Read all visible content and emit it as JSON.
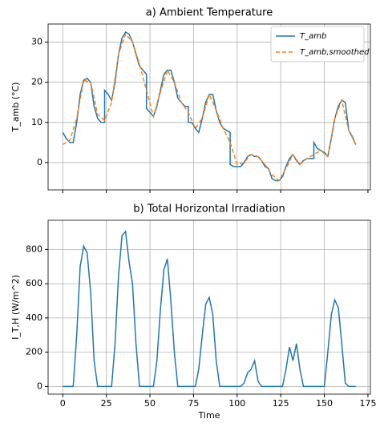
{
  "chart_data": [
    {
      "type": "line",
      "title": "a) Ambient Temperature",
      "ylabel": "T_amb (°C)",
      "xlim": [
        -8.4,
        176.4
      ],
      "ylim": [
        -6.8,
        34.5
      ],
      "xticks": [
        0,
        25,
        50,
        75,
        100,
        125,
        150,
        175
      ],
      "yticks": [
        0,
        10,
        20,
        30
      ],
      "grid": true,
      "legend": "upper right",
      "series": [
        {
          "name": "T_amb",
          "color": "#1f77b4",
          "style": "solid",
          "x": [
            0,
            2,
            4,
            6,
            8,
            10,
            12,
            14,
            16,
            18,
            20,
            22,
            24,
            24,
            26,
            28,
            30,
            32,
            34,
            36,
            38,
            40,
            42,
            44,
            46,
            48,
            48,
            50,
            52,
            54,
            56,
            58,
            60,
            62,
            64,
            66,
            68,
            70,
            72,
            72,
            74,
            76,
            78,
            80,
            82,
            84,
            86,
            88,
            90,
            92,
            94,
            96,
            96,
            98,
            100,
            102,
            104,
            106,
            108,
            110,
            112,
            114,
            116,
            118,
            120,
            122,
            124,
            126,
            128,
            130,
            132,
            134,
            136,
            138,
            140,
            142,
            144,
            144,
            146,
            148,
            150,
            152,
            154,
            156,
            158,
            160,
            162,
            164,
            166,
            168
          ],
          "values": [
            7.5,
            6,
            5,
            5,
            10,
            17,
            20.5,
            21,
            20,
            14,
            11,
            10,
            10,
            18,
            17,
            15.5,
            20,
            27,
            31,
            32.5,
            32,
            30,
            27,
            24,
            23,
            22,
            13.5,
            12.5,
            11.5,
            14,
            18,
            22,
            23,
            23,
            20,
            16,
            15,
            14,
            14,
            10,
            10,
            8.5,
            7.5,
            11,
            15,
            17,
            17,
            13,
            10,
            8.5,
            8,
            7.5,
            -0.5,
            -1,
            -1,
            -1,
            0,
            1.5,
            2,
            1.5,
            1.5,
            0.5,
            -1,
            -1.5,
            -4,
            -4.5,
            -4.5,
            -3.5,
            -1,
            1,
            2,
            0.5,
            -0.5,
            0.5,
            1,
            1,
            1,
            5,
            3.5,
            3,
            2.5,
            1.5,
            6,
            11,
            14,
            15.5,
            15,
            8,
            6.5,
            4.5
          ]
        },
        {
          "name": "T_amb,smoothed",
          "color": "#ff7f0e",
          "style": "dashed",
          "x": [
            0,
            4,
            8,
            12,
            16,
            20,
            24,
            28,
            32,
            36,
            40,
            44,
            48,
            52,
            56,
            60,
            64,
            68,
            72,
            76,
            80,
            84,
            88,
            92,
            96,
            100,
            104,
            108,
            112,
            116,
            120,
            124,
            128,
            132,
            136,
            140,
            144,
            148,
            152,
            156,
            160,
            164,
            168
          ],
          "values": [
            4.5,
            5.5,
            11,
            20.5,
            20,
            12,
            10.5,
            15,
            27,
            32,
            30,
            24.5,
            18,
            11.5,
            17.5,
            23,
            20,
            15,
            12.5,
            8.5,
            11,
            17,
            13,
            8.5,
            5,
            -0.5,
            0,
            2,
            1.5,
            -0.5,
            -3,
            -4.5,
            -1.5,
            2,
            -0.5,
            1,
            2,
            3,
            1.5,
            11,
            15.5,
            8,
            4.5
          ]
        }
      ]
    },
    {
      "type": "line",
      "title": "b) Total Horizontal Irradiation",
      "xlabel": "Time",
      "ylabel": "I_T,H (W/m^2)",
      "xlim": [
        -8.4,
        176.4
      ],
      "ylim": [
        -45,
        970
      ],
      "xticks": [
        0,
        25,
        50,
        75,
        100,
        125,
        150,
        175
      ],
      "yticks": [
        0,
        200,
        400,
        600,
        800
      ],
      "grid": true,
      "x": [
        0,
        2,
        4,
        6,
        8,
        10,
        12,
        14,
        16,
        18,
        20,
        22,
        24,
        26,
        28,
        30,
        32,
        34,
        36,
        38,
        40,
        42,
        44,
        46,
        48,
        50,
        52,
        54,
        56,
        58,
        60,
        62,
        64,
        66,
        68,
        70,
        72,
        74,
        76,
        78,
        80,
        82,
        84,
        86,
        88,
        90,
        92,
        94,
        96,
        98,
        100,
        102,
        104,
        106,
        108,
        110,
        112,
        114,
        116,
        118,
        120,
        122,
        124,
        126,
        128,
        130,
        132,
        134,
        136,
        138,
        140,
        142,
        144,
        146,
        148,
        150,
        152,
        154,
        156,
        158,
        160,
        162,
        164,
        166,
        168
      ],
      "series": [
        {
          "name": "I_T,H",
          "color": "#1f77b4",
          "style": "solid",
          "values": [
            0,
            0,
            0,
            0,
            300,
            700,
            820,
            780,
            550,
            150,
            0,
            0,
            0,
            0,
            0,
            250,
            650,
            880,
            905,
            730,
            600,
            250,
            0,
            0,
            0,
            0,
            0,
            150,
            450,
            680,
            745,
            500,
            200,
            0,
            0,
            0,
            0,
            0,
            0,
            100,
            300,
            480,
            520,
            420,
            150,
            0,
            0,
            0,
            0,
            0,
            0,
            0,
            20,
            80,
            100,
            150,
            30,
            0,
            0,
            0,
            0,
            0,
            0,
            0,
            100,
            230,
            150,
            250,
            100,
            0,
            0,
            0,
            0,
            0,
            0,
            0,
            200,
            420,
            505,
            460,
            250,
            20,
            0,
            0,
            0
          ]
        }
      ]
    }
  ]
}
